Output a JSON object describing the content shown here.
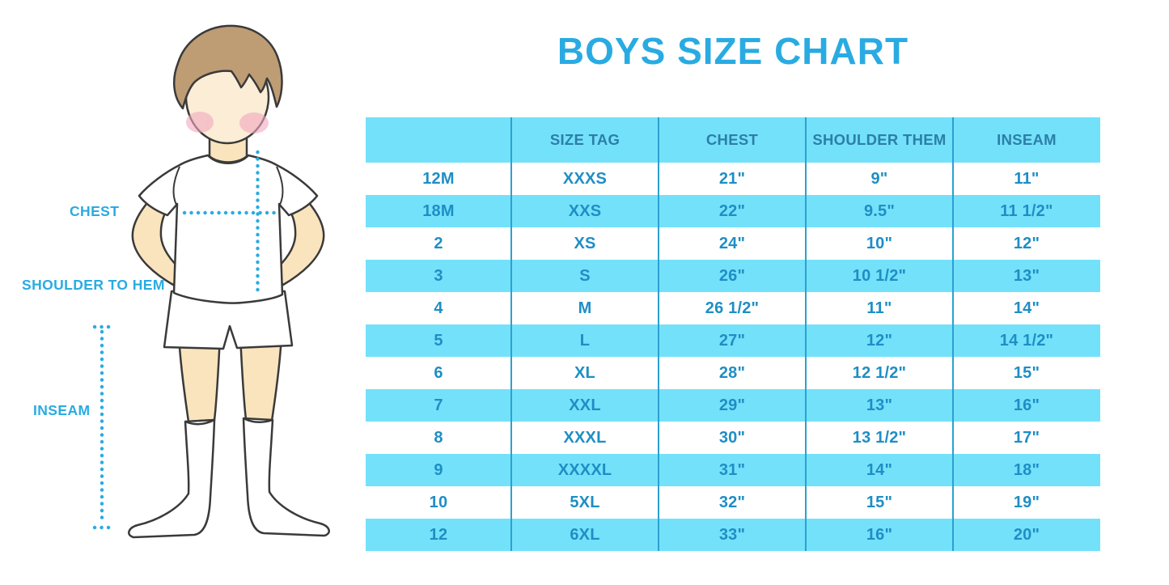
{
  "title": "BOYS SIZE CHART",
  "figure": {
    "labels": {
      "chest": "CHEST",
      "shoulder_to_hem": "SHOULDER TO HEM",
      "inseam": "INSEAM"
    }
  },
  "chart_data": {
    "type": "table",
    "title": "BOYS SIZE CHART",
    "headers": [
      "",
      "SIZE TAG",
      "CHEST",
      "SHOULDER THEM",
      "INSEAM"
    ],
    "rows": [
      [
        "12M",
        "XXXS",
        "21\"",
        "9\"",
        "11\""
      ],
      [
        "18M",
        "XXS",
        "22\"",
        "9.5\"",
        "11 1/2\""
      ],
      [
        "2",
        "XS",
        "24\"",
        "10\"",
        "12\""
      ],
      [
        "3",
        "S",
        "26\"",
        "10 1/2\"",
        "13\""
      ],
      [
        "4",
        "M",
        "26 1/2\"",
        "11\"",
        "14\""
      ],
      [
        "5",
        "L",
        "27\"",
        "12\"",
        "14 1/2\""
      ],
      [
        "6",
        "XL",
        "28\"",
        "12 1/2\"",
        "15\""
      ],
      [
        "7",
        "XXL",
        "29\"",
        "13\"",
        "16\""
      ],
      [
        "8",
        "XXXL",
        "30\"",
        "13 1/2\"",
        "17\""
      ],
      [
        "9",
        "XXXXL",
        "31\"",
        "14\"",
        "18\""
      ],
      [
        "10",
        "5XL",
        "32\"",
        "15\"",
        "19\""
      ],
      [
        "12",
        "6XL",
        "33\"",
        "16\"",
        "20\""
      ]
    ],
    "layout": {
      "striped": true,
      "stripe_rows": "even (18M,3,5,7,9,12)"
    }
  },
  "colors": {
    "accent_blue": "#29ABE2",
    "table_fill": "#74E1FA",
    "table_divider": "#2BA1D1",
    "header_text": "#2C7FA8",
    "cell_text": "#1E8EC5",
    "skin": "#F9E4BD",
    "hair": "#BE9C74"
  }
}
